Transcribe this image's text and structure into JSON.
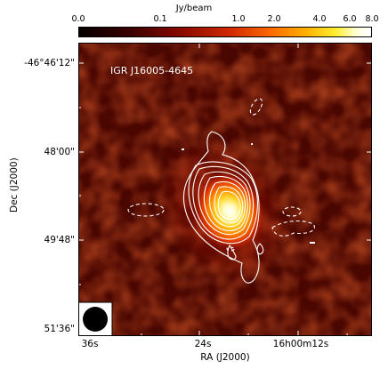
{
  "colorbar": {
    "unit": "Jy/beam",
    "ticks": [
      "0.0",
      "0.1",
      "1.0",
      "2.0",
      "4.0",
      "6.0",
      "8.0"
    ],
    "colors": [
      "#050000",
      "#8a0a00",
      "#ff6b00",
      "#ffee33",
      "#ffffff"
    ]
  },
  "map": {
    "source_label": "IGR J16005-4645",
    "beam_label": "beam",
    "contour_color": "#ffffff"
  },
  "axes": {
    "y_ticks": [
      "-46°46'12\"",
      "48'00\"",
      "49'48\"",
      "51'36\""
    ],
    "x_ticks": [
      "36s",
      "24s",
      "16h00m12s"
    ],
    "xlabel": "RA (J2000)",
    "ylabel": "Dec (J2000)"
  }
}
